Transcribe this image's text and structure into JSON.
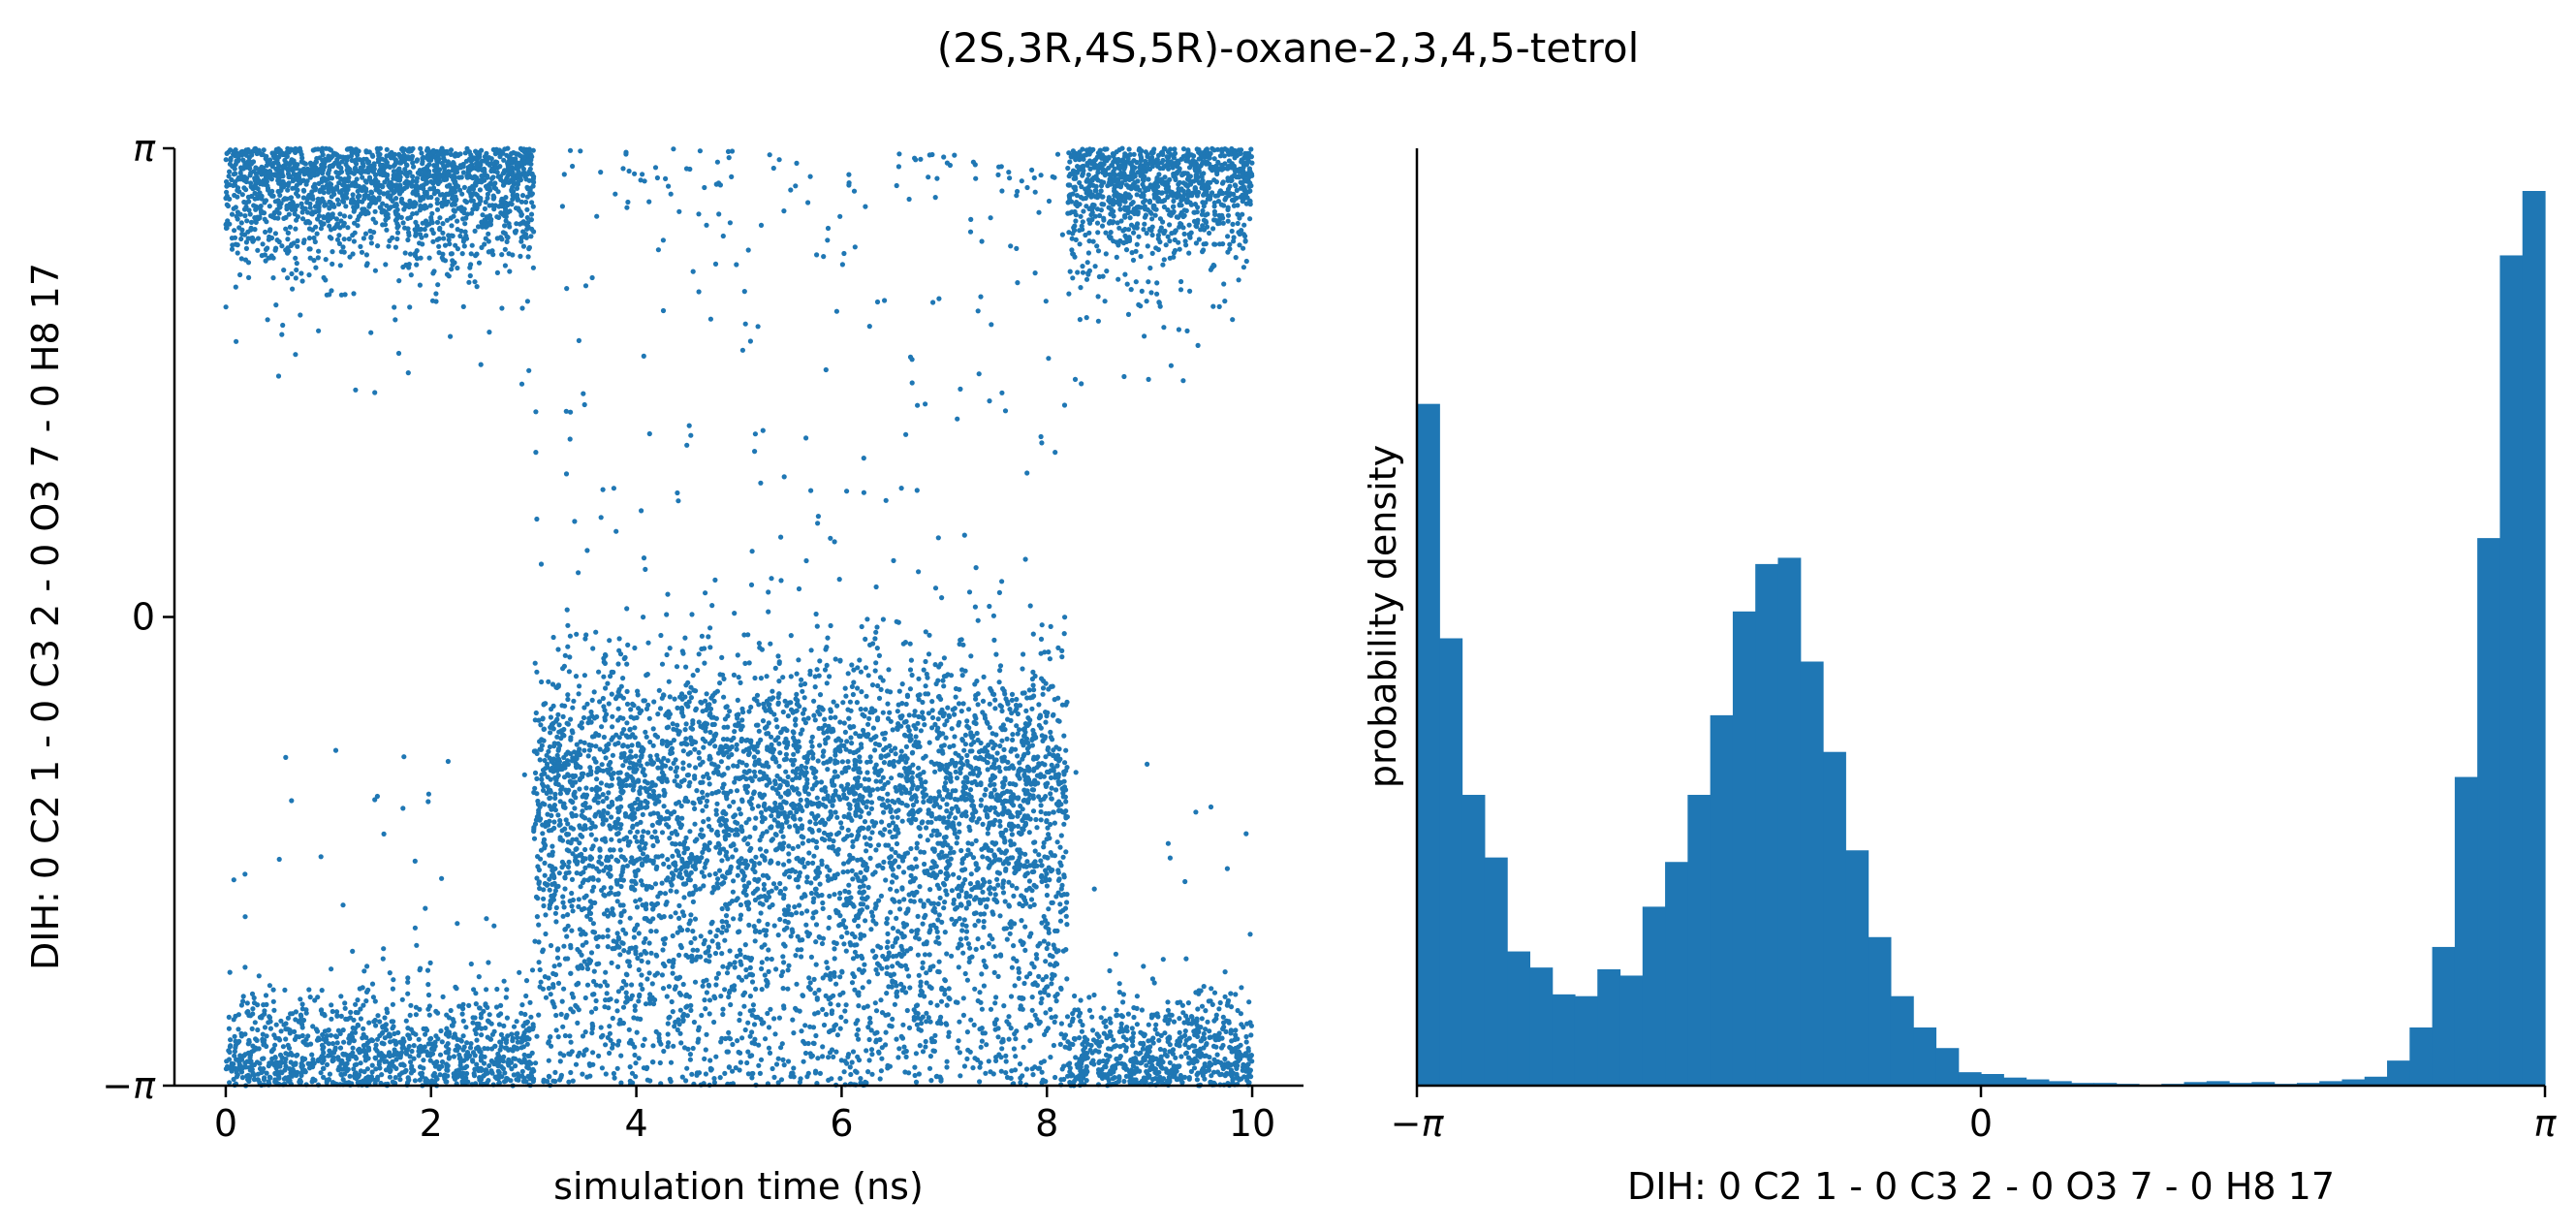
{
  "figure_title": "(2S,3R,4S,5R)-oxane-2,3,4,5-tetrol",
  "colors": {
    "series": "#1f77b4",
    "axis": "#000000"
  },
  "chart_data": [
    {
      "type": "scatter",
      "xlabel": "simulation time (ns)",
      "ylabel": "DIH:  0 C2 1 -  0 C3 2 -  0 O3 7 -  0 H8 17",
      "xlim": [
        -0.5,
        10.5
      ],
      "ylim": [
        -3.14159,
        3.14159
      ],
      "x_ticks": [
        {
          "value": 0,
          "label": "0"
        },
        {
          "value": 2,
          "label": "2"
        },
        {
          "value": 4,
          "label": "4"
        },
        {
          "value": 6,
          "label": "6"
        },
        {
          "value": 8,
          "label": "8"
        },
        {
          "value": 10,
          "label": "10"
        }
      ],
      "y_ticks": [
        {
          "value": -3.14159,
          "label": "−π"
        },
        {
          "value": 0,
          "label": "0"
        },
        {
          "value": 3.14159,
          "label": "π"
        }
      ],
      "grid": false,
      "segments": [
        {
          "t_start": 0.0,
          "t_end": 3.0,
          "state": "top (near π) and bottom (near −π), dihedral ≈ ±π"
        },
        {
          "t_start": 3.0,
          "t_end": 8.2,
          "state": "centered near -1.2 rad, spread toward −π"
        },
        {
          "t_start": 8.2,
          "t_end": 10.0,
          "state": "top (near π) and bottom (near −π), dihedral ≈ ±π"
        }
      ]
    },
    {
      "type": "bar",
      "subtype": "histogram",
      "xlabel": "DIH:  0 C2 1 -  0 C3 2 -  0 O3 7 -  0 H8 17",
      "ylabel": "probability density",
      "xlim": [
        -3.14159,
        3.14159
      ],
      "x_ticks": [
        {
          "value": -3.14159,
          "label": "−π"
        },
        {
          "value": 0,
          "label": "0"
        },
        {
          "value": 3.14159,
          "label": "π"
        }
      ],
      "y_ticks": [],
      "grid": false,
      "bin_count": 50,
      "relative_heights": [
        0.762,
        0.5,
        0.325,
        0.255,
        0.15,
        0.132,
        0.102,
        0.1,
        0.13,
        0.123,
        0.2,
        0.25,
        0.325,
        0.414,
        0.53,
        0.583,
        0.59,
        0.474,
        0.373,
        0.263,
        0.166,
        0.1,
        0.065,
        0.042,
        0.015,
        0.013,
        0.009,
        0.007,
        0.005,
        0.003,
        0.003,
        0.002,
        0.001,
        0.002,
        0.004,
        0.005,
        0.003,
        0.004,
        0.002,
        0.003,
        0.005,
        0.007,
        0.01,
        0.028,
        0.065,
        0.155,
        0.345,
        0.612,
        0.928,
        1.0
      ]
    }
  ]
}
